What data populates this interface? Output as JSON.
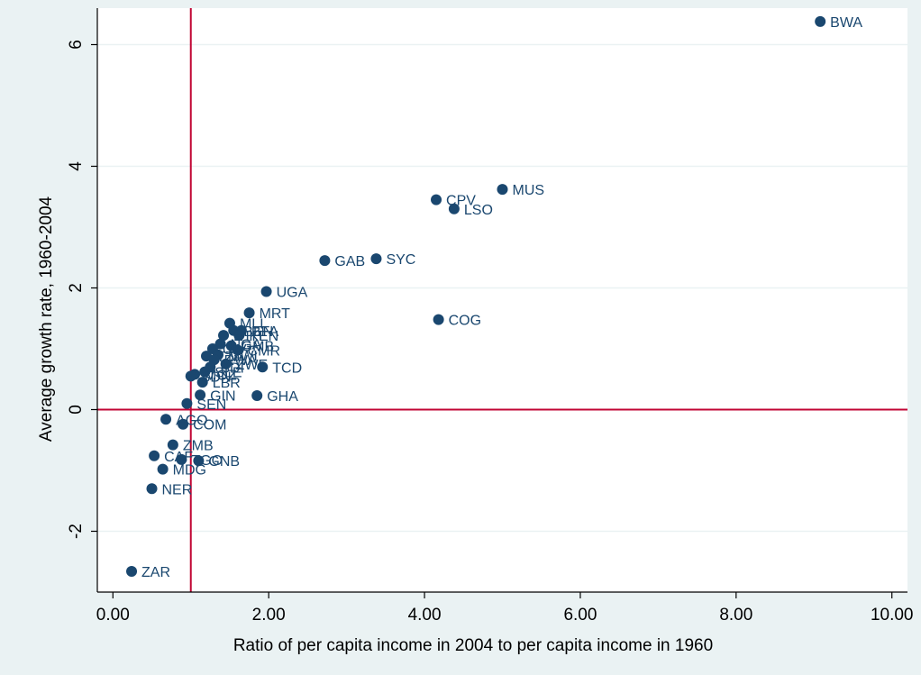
{
  "colors": {
    "outer_background": "#eaf2f3",
    "plot_background": "#ffffff",
    "marker": "#1a476f",
    "reference_line": "#c10534",
    "gridline": "#eaf2f3"
  },
  "chart_data": {
    "type": "scatter",
    "title": "",
    "xlabel": "Ratio of per capita income in 2004 to per capita income in 1960",
    "ylabel": "Average growth rate, 1960-2004",
    "xlim": [
      -0.2,
      10.2
    ],
    "ylim": [
      -3.0,
      6.6
    ],
    "xticks": [
      0,
      2,
      4,
      6,
      8,
      10
    ],
    "xtick_labels": [
      "0.00",
      "2.00",
      "4.00",
      "6.00",
      "8.00",
      "10.00"
    ],
    "yticks": [
      -2,
      0,
      2,
      4,
      6
    ],
    "ytick_labels": [
      "-2",
      "0",
      "2",
      "4",
      "6"
    ],
    "grid": "horizontal",
    "reference_lines": {
      "x": 1,
      "y": 0
    },
    "points": [
      {
        "label": "BWA",
        "x": 9.08,
        "y": 6.38
      },
      {
        "label": "MUS",
        "x": 5.0,
        "y": 3.62
      },
      {
        "label": "CPV",
        "x": 4.15,
        "y": 3.45
      },
      {
        "label": "LSO",
        "x": 4.38,
        "y": 3.3
      },
      {
        "label": "SYC",
        "x": 3.38,
        "y": 2.48
      },
      {
        "label": "GAB",
        "x": 2.72,
        "y": 2.45
      },
      {
        "label": "UGA",
        "x": 1.97,
        "y": 1.94
      },
      {
        "label": "COG",
        "x": 4.18,
        "y": 1.48
      },
      {
        "label": "MRT",
        "x": 1.75,
        "y": 1.59
      },
      {
        "label": "TCD",
        "x": 1.92,
        "y": 0.7
      },
      {
        "label": "GHA",
        "x": 1.85,
        "y": 0.23
      },
      {
        "label": "SEN",
        "x": 0.95,
        "y": 0.1
      },
      {
        "label": "GIN",
        "x": 1.12,
        "y": 0.24
      },
      {
        "label": "AGO",
        "x": 0.68,
        "y": -0.16
      },
      {
        "label": "COM",
        "x": 0.9,
        "y": -0.24
      },
      {
        "label": "ZMB",
        "x": 0.77,
        "y": -0.58
      },
      {
        "label": "CAF",
        "x": 0.53,
        "y": -0.76
      },
      {
        "label": "TGO",
        "x": 0.88,
        "y": -0.82
      },
      {
        "label": "GNB",
        "x": 1.1,
        "y": -0.84
      },
      {
        "label": "MDG",
        "x": 0.64,
        "y": -0.98
      },
      {
        "label": "NER",
        "x": 0.5,
        "y": -1.3
      },
      {
        "label": "ZAR",
        "x": 0.24,
        "y": -2.66
      },
      {
        "label": "BEN",
        "x": 1.55,
        "y": 1.3
      },
      {
        "label": "BFA",
        "x": 1.65,
        "y": 1.3
      },
      {
        "label": "KEN",
        "x": 1.62,
        "y": 1.22
      },
      {
        "label": "MLI",
        "x": 1.5,
        "y": 1.42
      },
      {
        "label": "ETH",
        "x": 1.42,
        "y": 1.22
      },
      {
        "label": "NGA",
        "x": 1.38,
        "y": 1.08
      },
      {
        "label": "GMB",
        "x": 1.52,
        "y": 1.05
      },
      {
        "label": "CMR",
        "x": 1.6,
        "y": 0.98
      },
      {
        "label": "CIV",
        "x": 1.28,
        "y": 1.0
      },
      {
        "label": "MWI",
        "x": 1.35,
        "y": 0.9
      },
      {
        "label": "TZA",
        "x": 1.2,
        "y": 0.88
      },
      {
        "label": "RWA",
        "x": 1.3,
        "y": 0.82
      },
      {
        "label": "ZWE",
        "x": 1.45,
        "y": 0.75
      },
      {
        "label": "BDI",
        "x": 1.25,
        "y": 0.7
      },
      {
        "label": "SLE",
        "x": 1.18,
        "y": 0.62
      },
      {
        "label": "MOZ",
        "x": 1.05,
        "y": 0.58
      },
      {
        "label": "SDN",
        "x": 1.0,
        "y": 0.55
      },
      {
        "label": "LBR",
        "x": 1.15,
        "y": 0.45
      }
    ],
    "point_labels_visible": [
      "BWA",
      "MUS",
      "CPV",
      "LSO",
      "SYC",
      "GAB",
      "UGA",
      "COG",
      "MRT",
      "TCD",
      "GHA",
      "SEN",
      "GIN",
      "AGO",
      "COM",
      "ZMB",
      "CAF",
      "TGO",
      "GNB",
      "MDG",
      "NER",
      "ZAR",
      "BEN",
      "BFA",
      "KEN",
      "MLI",
      "ETH",
      "NGA",
      "GMB",
      "CMR",
      "CIV",
      "MWI",
      "TZA",
      "RWA",
      "ZWE",
      "BDI",
      "SLE",
      "MOZ",
      "SDN",
      "LBR"
    ]
  }
}
